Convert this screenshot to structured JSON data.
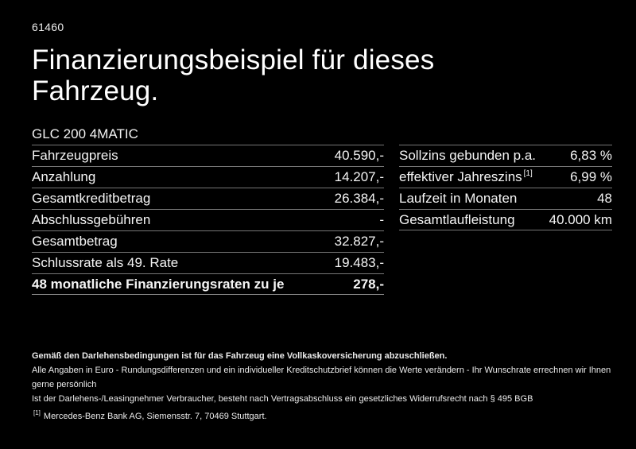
{
  "page": {
    "doc_number": "61460",
    "title": "Finanzierungsbeispiel für dieses Fahrzeug.",
    "vehicle_model": "GLC 200 4MATIC"
  },
  "left_table": {
    "rows": [
      {
        "label": "Fahrzeugpreis",
        "value": "40.590,-"
      },
      {
        "label": "Anzahlung",
        "value": "14.207,-"
      },
      {
        "label": "Gesamtkreditbetrag",
        "value": "26.384,-"
      },
      {
        "label": "Abschlussgebühren",
        "value": "-"
      },
      {
        "label": "Gesamtbetrag",
        "value": "32.827,-"
      },
      {
        "label": "Schlussrate als 49. Rate",
        "value": "19.483,-"
      },
      {
        "label": "48 monatliche Finanzierungsraten zu je",
        "value": "278,-"
      }
    ]
  },
  "right_table": {
    "rows": [
      {
        "label": "Sollzins gebunden p.a.",
        "value": "6,83 %"
      },
      {
        "label": "effektiver Jahreszins",
        "footnote_marker": "[1]",
        "value": "6,99 %"
      },
      {
        "label": "Laufzeit in Monaten",
        "value": "48"
      },
      {
        "label": "Gesamtlaufleistung",
        "value": "40.000 km"
      }
    ]
  },
  "disclaimer": {
    "line1": "Gemäß den Darlehensbedingungen ist für das Fahrzeug eine Vollkaskoversicherung abzuschließen.",
    "line2": "Alle Angaben in Euro - Rundungsdifferenzen und ein individueller Kreditschutzbrief können die Werte verändern - Ihr Wunschrate errechnen wir Ihnen gerne persönlich",
    "line3": "Ist der Darlehens-/Leasingnehmer Verbraucher, besteht nach Vertragsabschluss ein gesetzliches Widerrufsrecht nach § 495 BGB",
    "footnote_marker": "[1]",
    "footnote_text": "Mercedes-Benz Bank AG, Siemensstr. 7, 70469 Stuttgart."
  },
  "colors": {
    "background": "#000000",
    "text": "#f5f5f5",
    "separator": "#767676"
  }
}
